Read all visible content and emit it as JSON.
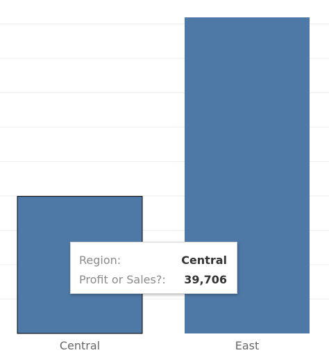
{
  "chart_data": {
    "type": "bar",
    "categories": [
      "Central",
      "East"
    ],
    "values": [
      39706,
      91500
    ],
    "ylim": [
      0,
      91500
    ],
    "grid": true,
    "bar_color": "#4e79a7",
    "highlight_border_color": "#000000",
    "selected_category": "Central"
  },
  "tooltip": {
    "region_key": "Region:",
    "region_value": "Central",
    "measure_key": "Profit or Sales?:",
    "measure_value": "39,706"
  }
}
